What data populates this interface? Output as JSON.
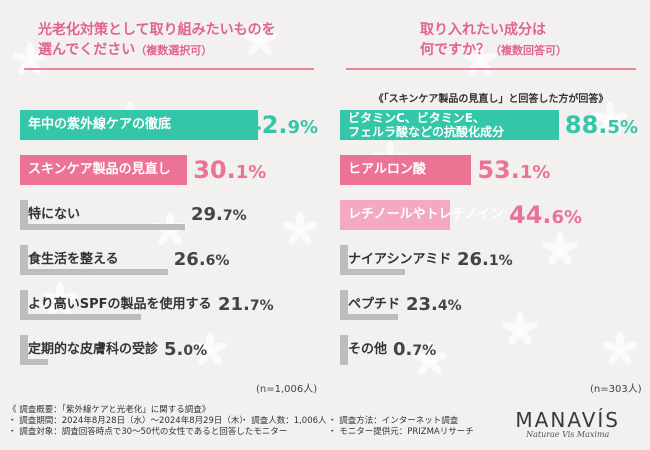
{
  "colors": {
    "teal": "#34c6a8",
    "pink": "#ed7395",
    "lightpink": "#f3a9c2",
    "gray": "#bdbdbd",
    "text_pink": "#e1648f",
    "accent": "#e8739a"
  },
  "chart_data": [
    {
      "type": "bar",
      "title": "光老化対策として取り組みたいものを選んでください（複数選択可）",
      "title_lines": [
        "光老化対策として取り組みたいものを",
        "選んでください"
      ],
      "title_suffix": "（複数選択可）",
      "n_note": "(n=1,006人)",
      "xlim": [
        0,
        45
      ],
      "categories": [
        "年中の紫外線ケアの徹底",
        "スキンケア製品の見直し",
        "特にない",
        "食生活を整える",
        "より高いSPFの製品を使用する",
        "定期的な皮膚科の受診"
      ],
      "values": [
        42.9,
        30.1,
        29.7,
        26.6,
        21.7,
        5.0
      ],
      "value_labels": [
        [
          "42.",
          "9%"
        ],
        [
          "30.",
          "1%"
        ],
        [
          "29.",
          "7%"
        ],
        [
          "26.",
          "6%"
        ],
        [
          "21.",
          "7%"
        ],
        [
          "5.",
          "0%"
        ]
      ],
      "bar_colors": [
        "#34c6a8",
        "#ed7395",
        "#bdbdbd",
        "#bdbdbd",
        "#bdbdbd",
        "#bdbdbd"
      ]
    },
    {
      "type": "bar",
      "title": "取り入れたい成分は何ですか？（複数回答可）",
      "title_lines": [
        "取り入れたい成分は",
        "何ですか？"
      ],
      "title_suffix": "（複数回答可）",
      "subtitle": "《「スキンケア製品の見直し」と回答した方が回答》",
      "n_note": "(n=303人)",
      "xlim": [
        0,
        95
      ],
      "categories": [
        "ビタミンC、ビタミンE、フェルラ酸などの抗酸化成分",
        "ヒアルロン酸",
        "レチノールやトレチノイン",
        "ナイアシンアミド",
        "ペプチド",
        "その他"
      ],
      "category_lines": [
        [
          "ビタミンC、ビタミンE、",
          "フェルラ酸などの抗酸化成分"
        ],
        [
          "ヒアルロン酸"
        ],
        [
          "レチノールやトレチノイン"
        ],
        [
          "ナイアシンアミド"
        ],
        [
          "ペプチド"
        ],
        [
          "その他"
        ]
      ],
      "values": [
        88.5,
        53.1,
        44.6,
        26.1,
        23.4,
        0.7
      ],
      "value_labels": [
        [
          "88.",
          "5%"
        ],
        [
          "53.",
          "1%"
        ],
        [
          "44.",
          "6%"
        ],
        [
          "26.",
          "1%"
        ],
        [
          "23.",
          "4%"
        ],
        [
          "0.",
          "7%"
        ]
      ],
      "bar_colors": [
        "#34c6a8",
        "#ed7395",
        "#f3a9c2",
        "#bdbdbd",
        "#bdbdbd",
        "#bdbdbd"
      ]
    }
  ],
  "footer": {
    "line1": "《 調査概要：「紫外線ケアと光老化」に関する調査》",
    "period": "・ 調査期間：2024年8月28日（水）～2024年8月29日（木）",
    "count": "・ 調査人数：1,006人",
    "method": "・ 調査方法：インターネット調査",
    "target": "・ 調査対象：調査回答時点で30～50代の女性であると回答したモニター",
    "provider": "・ モニター提供元：PRIZMAリサーチ"
  },
  "logo": {
    "brand": "MANAVÍS",
    "tagline": "Naturae Vis Maxima",
    "icon": "flower-pattern-icon"
  }
}
